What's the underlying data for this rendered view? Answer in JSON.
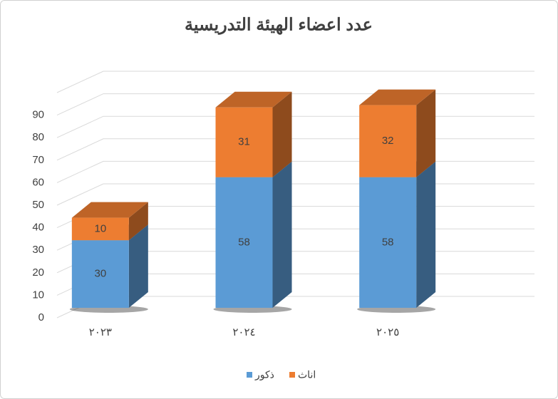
{
  "chart_data": {
    "type": "bar3d_stacked",
    "title": "عدد اعضاء الهيئة التدريسية",
    "categories": [
      "٢٠٢٣",
      "٢٠٢٤",
      "٢٠٢٥"
    ],
    "series": [
      {
        "name": "ذكور",
        "color": "#5b9bd5",
        "values": [
          30,
          58,
          58
        ]
      },
      {
        "name": "اناث",
        "color": "#ed7d31",
        "values": [
          10,
          31,
          32
        ]
      }
    ],
    "ylim": [
      0,
      100
    ],
    "yticks": [
      0,
      10,
      20,
      30,
      40,
      50,
      60,
      70,
      80,
      90
    ],
    "grid": true,
    "legend": "bottom"
  }
}
